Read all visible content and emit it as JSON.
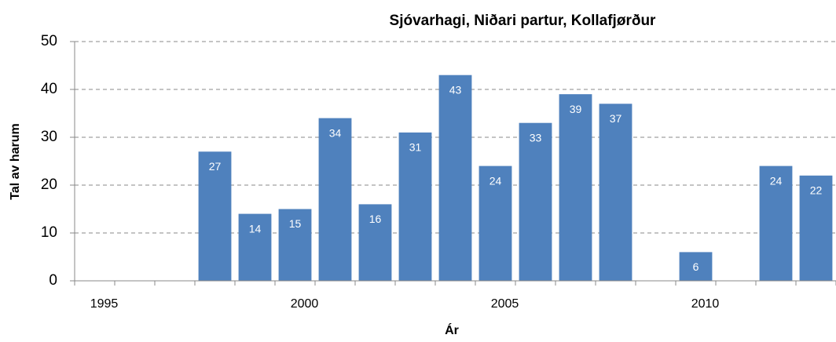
{
  "chart_data": {
    "type": "bar",
    "title": "Sjóvarhagi, Niðari partur, Kollafjørður",
    "x_label": "Ár",
    "y_label": "Tal av harum",
    "categories": [
      "1995",
      null,
      null,
      null,
      null,
      "2000",
      null,
      null,
      null,
      null,
      "2005",
      null,
      null,
      null,
      null,
      "2010",
      null,
      null,
      null
    ],
    "values": [
      null,
      null,
      null,
      27,
      14,
      15,
      34,
      16,
      31,
      43,
      24,
      33,
      39,
      37,
      null,
      6,
      null,
      24,
      22
    ],
    "color": "#4f81bd",
    "ylim": [
      0,
      50
    ],
    "yticks": [
      0,
      10,
      20,
      30,
      40,
      50
    ],
    "grid": true
  }
}
